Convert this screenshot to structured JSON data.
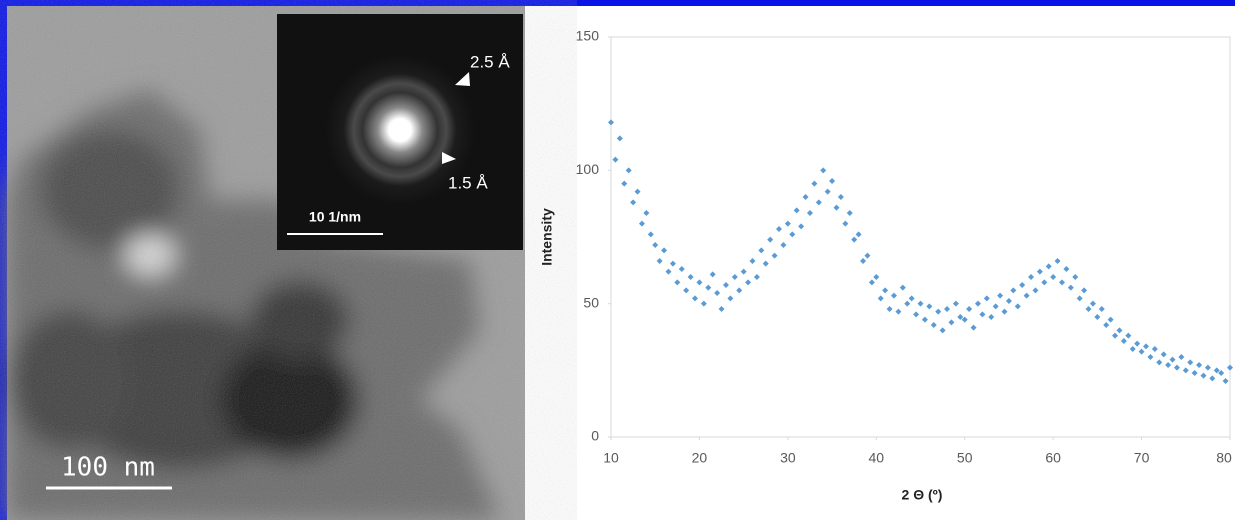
{
  "micrograph": {
    "scale_bar": "100 nm",
    "inset": {
      "scale_bar": "10 1/nm",
      "labels": [
        "2.5 Å",
        "1.5 Å"
      ]
    }
  },
  "chart_data": {
    "type": "scatter",
    "xlabel": "2 Θ (º)",
    "ylabel": "Intensity",
    "color": "#5b9bd5",
    "xlim": [
      10,
      80
    ],
    "xticks": [
      10,
      20,
      30,
      40,
      50,
      60,
      70,
      80
    ],
    "ylim": [
      0,
      150
    ],
    "yticks": [
      0,
      50,
      100,
      150
    ],
    "grid": false,
    "x": [
      10,
      10.5,
      11,
      11.5,
      12,
      12.5,
      13,
      13.5,
      14,
      14.5,
      15,
      15.5,
      16,
      16.5,
      17,
      17.5,
      18,
      18.5,
      19,
      19.5,
      20,
      20.5,
      21,
      21.5,
      22,
      22.5,
      23,
      23.5,
      24,
      24.5,
      25,
      25.5,
      26,
      26.5,
      27,
      27.5,
      28,
      28.5,
      29,
      29.5,
      30,
      30.5,
      31,
      31.5,
      32,
      32.5,
      33,
      33.5,
      34,
      34.5,
      35,
      35.5,
      36,
      36.5,
      37,
      37.5,
      38,
      38.5,
      39,
      39.5,
      40,
      40.5,
      41,
      41.5,
      42,
      42.5,
      43,
      43.5,
      44,
      44.5,
      45,
      45.5,
      46,
      46.5,
      47,
      47.5,
      48,
      48.5,
      49,
      49.5,
      50,
      50.5,
      51,
      51.5,
      52,
      52.5,
      53,
      53.5,
      54,
      54.5,
      55,
      55.5,
      56,
      56.5,
      57,
      57.5,
      58,
      58.5,
      59,
      59.5,
      60,
      60.5,
      61,
      61.5,
      62,
      62.5,
      63,
      63.5,
      64,
      64.5,
      65,
      65.5,
      66,
      66.5,
      67,
      67.5,
      68,
      68.5,
      69,
      69.5,
      70,
      70.5,
      71,
      71.5,
      72,
      72.5,
      73,
      73.5,
      74,
      74.5,
      75,
      75.5,
      76,
      76.5,
      77,
      77.5,
      78,
      78.5,
      79,
      79.5,
      80
    ],
    "values": [
      118,
      104,
      112,
      95,
      100,
      88,
      92,
      80,
      84,
      76,
      72,
      66,
      70,
      62,
      65,
      58,
      63,
      55,
      60,
      52,
      58,
      50,
      56,
      61,
      54,
      48,
      57,
      52,
      60,
      55,
      62,
      58,
      66,
      60,
      70,
      65,
      74,
      68,
      78,
      72,
      80,
      76,
      85,
      79,
      90,
      84,
      95,
      88,
      100,
      92,
      96,
      86,
      90,
      80,
      84,
      74,
      76,
      66,
      68,
      58,
      60,
      52,
      55,
      48,
      53,
      47,
      56,
      50,
      52,
      46,
      50,
      44,
      49,
      42,
      47,
      40,
      48,
      43,
      50,
      45,
      44,
      48,
      41,
      50,
      46,
      52,
      45,
      49,
      53,
      47,
      51,
      55,
      49,
      57,
      53,
      60,
      55,
      62,
      58,
      64,
      60,
      66,
      58,
      63,
      56,
      60,
      52,
      55,
      48,
      50,
      45,
      48,
      42,
      44,
      38,
      40,
      36,
      38,
      33,
      35,
      32,
      34,
      30,
      33,
      28,
      31,
      27,
      29,
      26,
      30,
      25,
      28,
      24,
      27,
      23,
      26,
      22,
      25,
      24,
      21,
      26
    ]
  }
}
